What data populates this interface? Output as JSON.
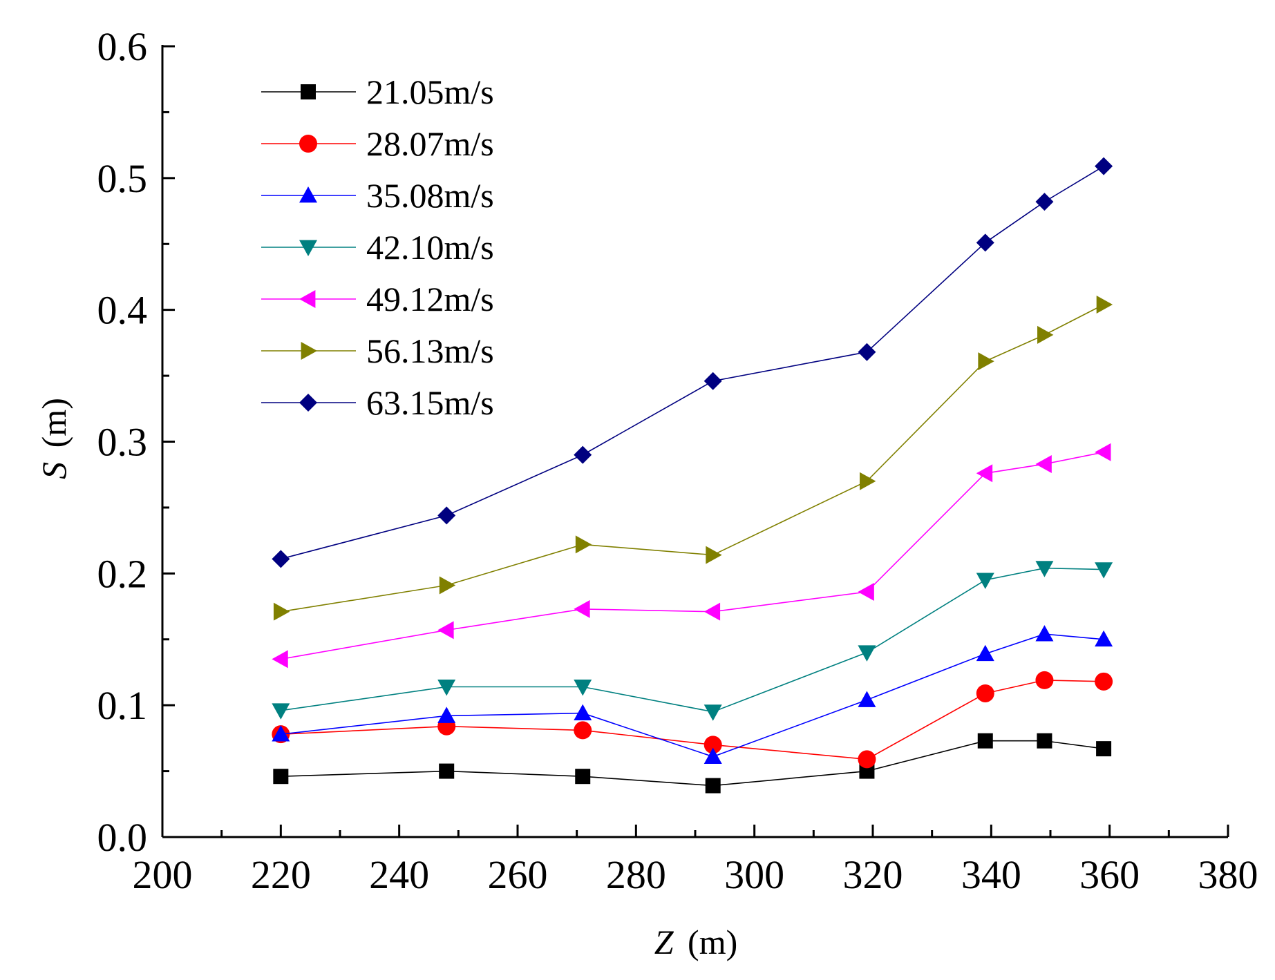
{
  "chart_data": {
    "type": "line",
    "xlabel_symbol": "Z",
    "xlabel_unit": "(m)",
    "ylabel_symbol": "S",
    "ylabel_unit": "(m)",
    "xlim": [
      200,
      380
    ],
    "ylim": [
      0.0,
      0.6
    ],
    "x_ticks": [
      200,
      220,
      240,
      260,
      280,
      300,
      320,
      340,
      360,
      380
    ],
    "x_tick_labels": [
      "200",
      "220",
      "240",
      "260",
      "280",
      "300",
      "320",
      "340",
      "360",
      "380"
    ],
    "y_ticks": [
      0.0,
      0.1,
      0.2,
      0.3,
      0.4,
      0.5,
      0.6
    ],
    "y_tick_labels": [
      "0.0",
      "0.1",
      "0.2",
      "0.3",
      "0.4",
      "0.5",
      "0.6"
    ],
    "grid": false,
    "legend_position": "top-left",
    "x": [
      220,
      248,
      271,
      293,
      319,
      339,
      349,
      359
    ],
    "series": [
      {
        "name": "21.05m/s",
        "color": "#000000",
        "marker": "square",
        "values": [
          0.046,
          0.05,
          0.046,
          0.039,
          0.05,
          0.073,
          0.073,
          0.067
        ]
      },
      {
        "name": "28.07m/s",
        "color": "#ff0000",
        "marker": "circle",
        "values": [
          0.078,
          0.084,
          0.081,
          0.07,
          0.059,
          0.109,
          0.119,
          0.118
        ]
      },
      {
        "name": "35.08m/s",
        "color": "#0000ff",
        "marker": "triangle-up",
        "values": [
          0.078,
          0.092,
          0.094,
          0.061,
          0.104,
          0.139,
          0.154,
          0.15
        ]
      },
      {
        "name": "42.10m/s",
        "color": "#008080",
        "marker": "triangle-down",
        "values": [
          0.096,
          0.114,
          0.114,
          0.095,
          0.14,
          0.195,
          0.204,
          0.203
        ]
      },
      {
        "name": "49.12m/s",
        "color": "#ff00ff",
        "marker": "triangle-left",
        "values": [
          0.135,
          0.157,
          0.173,
          0.171,
          0.186,
          0.276,
          0.283,
          0.292
        ]
      },
      {
        "name": "56.13m/s",
        "color": "#808000",
        "marker": "triangle-right",
        "values": [
          0.171,
          0.191,
          0.222,
          0.214,
          0.27,
          0.361,
          0.381,
          0.404
        ]
      },
      {
        "name": "63.15m/s",
        "color": "#000080",
        "marker": "diamond",
        "values": [
          0.211,
          0.244,
          0.29,
          0.346,
          0.368,
          0.451,
          0.482,
          0.509
        ]
      }
    ]
  }
}
